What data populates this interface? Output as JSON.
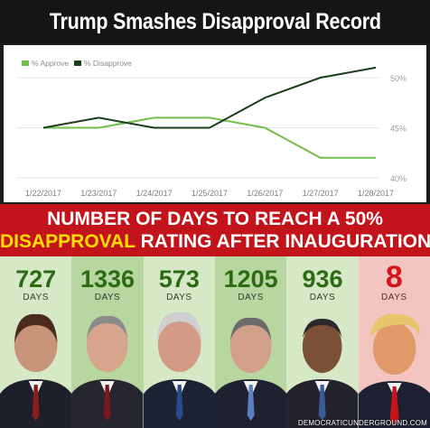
{
  "header": {
    "title": "Trump Smashes Disapproval Record"
  },
  "chart_data": {
    "type": "line",
    "title": "",
    "xlabel": "",
    "ylabel": "",
    "x": [
      "1/22/2017",
      "1/23/2017",
      "1/24/2017",
      "1/25/2017",
      "1/26/2017",
      "1/27/2017",
      "1/28/2017"
    ],
    "series": [
      {
        "name": "% Approve",
        "color": "#6fbf4b",
        "values": [
          45,
          45,
          46,
          46,
          45,
          42,
          42
        ]
      },
      {
        "name": "% Disapprove",
        "color": "#1b3f19",
        "values": [
          45,
          46,
          45,
          45,
          48,
          50,
          51
        ]
      }
    ],
    "yticks": [
      "40%",
      "45%",
      "50%"
    ],
    "ylim": [
      40,
      50
    ],
    "grid": true,
    "legend": "top-left"
  },
  "banner": {
    "line1": "NUMBER OF DAYS TO REACH A 50%",
    "line2_highlight": "DISAPPROVAL",
    "line2_rest": " RATING AFTER INAUGURATION"
  },
  "presidents": [
    {
      "days": "727",
      "unit": "DAYS",
      "bg": "#d7e8c6"
    },
    {
      "days": "1336",
      "unit": "DAYS",
      "bg": "#b7d6a0"
    },
    {
      "days": "573",
      "unit": "DAYS",
      "bg": "#d7e8c6"
    },
    {
      "days": "1205",
      "unit": "DAYS",
      "bg": "#b7d6a0"
    },
    {
      "days": "936",
      "unit": "DAYS",
      "bg": "#d7e8c6"
    },
    {
      "days": "8",
      "unit": "DAYS",
      "bg": "#f3c5c0"
    }
  ],
  "credit": "DEMOCRATICUNDERGROUND.COM"
}
